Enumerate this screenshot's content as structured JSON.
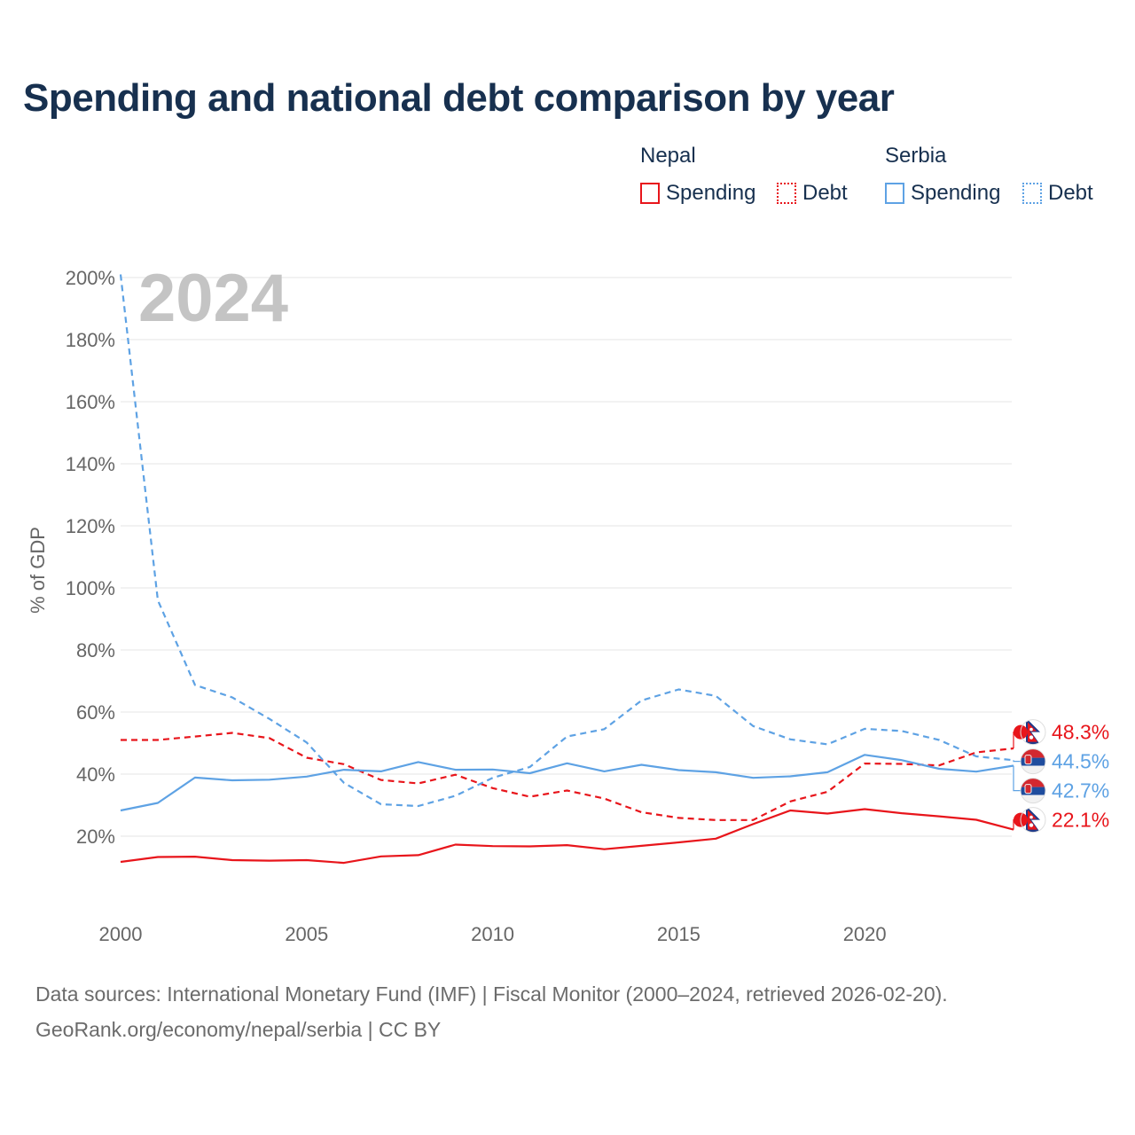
{
  "colors": {
    "nepal": "#e8151b",
    "serbia": "#5ea2e4",
    "title": "#17304f",
    "grid": "#e6e6e6"
  },
  "header": {
    "title": "Spending and national debt comparison by year"
  },
  "legend": {
    "nepal_title": "Nepal",
    "serbia_title": "Serbia",
    "nepal_spending": "Spending",
    "nepal_debt": "Debt",
    "serbia_spending": "Spending",
    "serbia_debt": "Debt"
  },
  "footer": {
    "line1": "Data sources: International Monetary Fund (IMF) | Fiscal Monitor (2000–2024, retrieved 2026-02-20).",
    "line2": "GeoRank.org/economy/nepal/serbia | CC BY"
  },
  "chart_data": {
    "type": "line",
    "title": "Spending and national debt comparison by year",
    "current_year_label": "2024",
    "xlabel": "",
    "ylabel": "% of GDP",
    "x": [
      2000,
      2001,
      2002,
      2003,
      2004,
      2005,
      2006,
      2007,
      2008,
      2009,
      2010,
      2011,
      2012,
      2013,
      2014,
      2015,
      2016,
      2017,
      2018,
      2019,
      2020,
      2021,
      2022,
      2023,
      2024
    ],
    "xlim": [
      2000,
      2024
    ],
    "ylim": [
      0,
      200
    ],
    "x_ticks": [
      2000,
      2005,
      2010,
      2015,
      2020
    ],
    "y_ticks": [
      20,
      40,
      60,
      80,
      100,
      120,
      140,
      160,
      180,
      200
    ],
    "y_tick_labels": [
      "20%",
      "40%",
      "60%",
      "80%",
      "100%",
      "120%",
      "140%",
      "160%",
      "180%",
      "200%"
    ],
    "grid": true,
    "series": [
      {
        "name": "Nepal Spending",
        "country": "nepal",
        "style": "solid",
        "values": [
          11.7,
          13.3,
          13.4,
          12.3,
          12.1,
          12.3,
          11.4,
          13.5,
          13.9,
          17.3,
          16.8,
          16.7,
          17.1,
          15.8,
          16.9,
          18.0,
          19.2,
          23.9,
          28.3,
          27.3,
          28.7,
          27.4,
          26.4,
          25.3,
          22.1
        ],
        "end_label": "22.1%"
      },
      {
        "name": "Nepal Debt",
        "country": "nepal",
        "style": "dashed",
        "values": [
          51.0,
          51.0,
          52.1,
          53.3,
          51.6,
          45.3,
          43.2,
          38.1,
          37.0,
          39.8,
          35.5,
          32.7,
          34.7,
          32.1,
          27.7,
          25.9,
          25.2,
          25.2,
          31.2,
          34.3,
          43.4,
          43.3,
          42.8,
          47.0,
          48.3
        ],
        "end_label": "48.3%"
      },
      {
        "name": "Serbia Spending",
        "country": "serbia",
        "style": "solid",
        "values": [
          28.3,
          30.7,
          38.9,
          38.0,
          38.2,
          39.2,
          41.4,
          40.9,
          43.9,
          41.4,
          41.5,
          40.3,
          43.5,
          40.9,
          43.0,
          41.3,
          40.6,
          38.8,
          39.3,
          40.6,
          46.2,
          44.5,
          41.7,
          40.8,
          42.7
        ],
        "end_label": "42.7%"
      },
      {
        "name": "Serbia Debt",
        "country": "serbia",
        "style": "dashed",
        "values": [
          201.0,
          96.0,
          68.7,
          64.7,
          57.8,
          50.2,
          37.2,
          30.3,
          29.7,
          33.0,
          38.8,
          42.3,
          52.1,
          54.5,
          63.7,
          67.3,
          65.2,
          55.5,
          51.2,
          49.6,
          54.6,
          53.9,
          51.0,
          45.7,
          44.5
        ],
        "end_label": "44.5%"
      }
    ]
  }
}
